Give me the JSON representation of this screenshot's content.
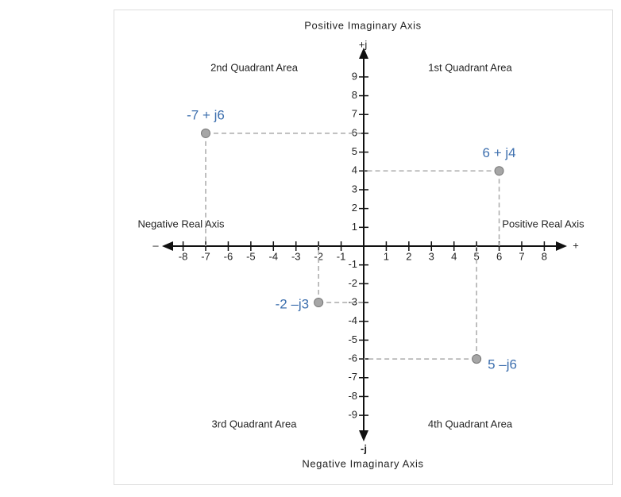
{
  "chart_data": {
    "type": "scatter",
    "axis_labels": {
      "positive_imaginary": "Positive Imaginary Axis",
      "negative_imaginary": "Negative Imaginary Axis",
      "negative_real": "Negative Real Axis",
      "positive_real": "Positive Real Axis",
      "plus_j": "+j",
      "minus_j": "-j",
      "plus": "+",
      "minus": "–"
    },
    "quadrants": {
      "second": "2nd Quadrant Area",
      "first": "1st Quadrant Area",
      "third": "3rd Quadrant Area",
      "fourth": "4th Quadrant Area"
    },
    "x": [
      -7,
      6,
      -2,
      5
    ],
    "values": [
      6,
      4,
      -3,
      -6
    ],
    "point_labels": [
      "-7 + j6",
      "6 + j4",
      "-2 –j3",
      "5 –j6"
    ],
    "color": "#a6a6a6",
    "label_color": "#3d6fae",
    "xlim": [
      -8.9,
      8.9
    ],
    "ylim": [
      -10.6,
      10.6
    ],
    "xticks": [
      -8,
      -7,
      -6,
      -5,
      -4,
      -3,
      -2,
      -1,
      1,
      2,
      3,
      4,
      5,
      6,
      7,
      8
    ],
    "yticks": [
      -9,
      -8,
      -7,
      -6,
      -5,
      -4,
      -3,
      -2,
      -1,
      1,
      2,
      3,
      4,
      5,
      6,
      7,
      8,
      9
    ]
  }
}
